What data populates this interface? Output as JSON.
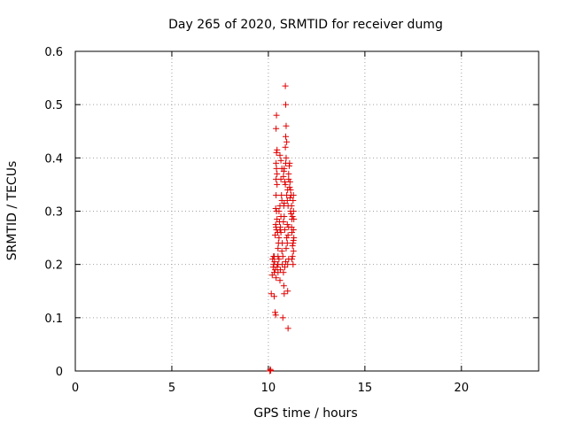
{
  "chart_data": {
    "type": "scatter",
    "title": "Day 265 of 2020, SRMTID for receiver dumg",
    "xlabel": "GPS time / hours",
    "ylabel": "SRMTID / TECUs",
    "xlim": [
      0,
      24
    ],
    "ylim": [
      0,
      0.6
    ],
    "xticks": [
      0,
      5,
      10,
      15,
      20
    ],
    "yticks": [
      0,
      0.1,
      0.2,
      0.3,
      0.4,
      0.5,
      0.6
    ],
    "xtick_labels": [
      "0",
      "5",
      "10",
      "15",
      "20"
    ],
    "ytick_labels": [
      "0",
      "0.1",
      "0.2",
      "0.3",
      "0.4",
      "0.5",
      "0.6"
    ],
    "grid": true,
    "marker": "+",
    "color": "#e00000",
    "series": [
      {
        "name": "SRMTID",
        "points": [
          [
            10.08,
            0.0
          ],
          [
            10.1,
            0.003
          ],
          [
            10.12,
            0.001
          ],
          [
            10.15,
            0.145
          ],
          [
            10.2,
            0.18
          ],
          [
            10.22,
            0.21
          ],
          [
            10.25,
            0.195
          ],
          [
            10.27,
            0.215
          ],
          [
            10.3,
            0.185
          ],
          [
            10.32,
            0.205
          ],
          [
            10.3,
            0.14
          ],
          [
            10.35,
            0.11
          ],
          [
            10.38,
            0.105
          ],
          [
            10.35,
            0.19
          ],
          [
            10.4,
            0.175
          ],
          [
            10.35,
            0.255
          ],
          [
            10.38,
            0.275
          ],
          [
            10.4,
            0.27
          ],
          [
            10.42,
            0.265
          ],
          [
            10.45,
            0.285
          ],
          [
            10.38,
            0.305
          ],
          [
            10.42,
            0.3
          ],
          [
            10.4,
            0.33
          ],
          [
            10.45,
            0.35
          ],
          [
            10.4,
            0.36
          ],
          [
            10.42,
            0.38
          ],
          [
            10.45,
            0.37
          ],
          [
            10.4,
            0.39
          ],
          [
            10.42,
            0.41
          ],
          [
            10.45,
            0.415
          ],
          [
            10.4,
            0.455
          ],
          [
            10.42,
            0.48
          ],
          [
            10.5,
            0.2
          ],
          [
            10.55,
            0.21
          ],
          [
            10.5,
            0.185
          ],
          [
            10.6,
            0.17
          ],
          [
            10.62,
            0.19
          ],
          [
            10.55,
            0.25
          ],
          [
            10.6,
            0.265
          ],
          [
            10.65,
            0.26
          ],
          [
            10.58,
            0.28
          ],
          [
            10.62,
            0.27
          ],
          [
            10.55,
            0.3
          ],
          [
            10.65,
            0.29
          ],
          [
            10.6,
            0.31
          ],
          [
            10.7,
            0.32
          ],
          [
            10.68,
            0.33
          ],
          [
            10.7,
            0.225
          ],
          [
            10.72,
            0.24
          ],
          [
            10.75,
            0.215
          ],
          [
            10.72,
            0.2
          ],
          [
            10.78,
            0.185
          ],
          [
            10.8,
            0.16
          ],
          [
            10.82,
            0.145
          ],
          [
            10.75,
            0.1
          ],
          [
            10.6,
            0.405
          ],
          [
            10.65,
            0.395
          ],
          [
            10.8,
            0.31
          ],
          [
            10.82,
            0.315
          ],
          [
            10.78,
            0.28
          ],
          [
            10.82,
            0.29
          ],
          [
            10.85,
            0.265
          ],
          [
            10.78,
            0.365
          ],
          [
            10.85,
            0.355
          ],
          [
            10.8,
            0.375
          ],
          [
            10.82,
            0.38
          ],
          [
            10.88,
            0.35
          ],
          [
            10.9,
            0.39
          ],
          [
            10.92,
            0.4
          ],
          [
            10.88,
            0.42
          ],
          [
            10.95,
            0.43
          ],
          [
            10.9,
            0.44
          ],
          [
            10.92,
            0.46
          ],
          [
            10.9,
            0.5
          ],
          [
            10.88,
            0.535
          ],
          [
            10.95,
            0.33
          ],
          [
            11.0,
            0.34
          ],
          [
            10.98,
            0.32
          ],
          [
            11.02,
            0.31
          ],
          [
            11.05,
            0.36
          ],
          [
            11.0,
            0.2
          ],
          [
            11.05,
            0.21
          ],
          [
            10.98,
            0.24
          ],
          [
            11.02,
            0.255
          ],
          [
            11.05,
            0.27
          ],
          [
            11.0,
            0.15
          ],
          [
            11.02,
            0.08
          ],
          [
            11.05,
            0.37
          ],
          [
            11.08,
            0.385
          ],
          [
            11.1,
            0.39
          ],
          [
            11.1,
            0.345
          ],
          [
            11.12,
            0.355
          ],
          [
            11.15,
            0.34
          ],
          [
            11.12,
            0.325
          ],
          [
            11.18,
            0.33
          ],
          [
            11.15,
            0.3
          ],
          [
            11.2,
            0.31
          ],
          [
            11.18,
            0.295
          ],
          [
            11.22,
            0.285
          ],
          [
            11.25,
            0.29
          ],
          [
            11.2,
            0.27
          ],
          [
            11.22,
            0.26
          ],
          [
            11.25,
            0.235
          ],
          [
            11.28,
            0.24
          ],
          [
            11.3,
            0.245
          ],
          [
            11.22,
            0.21
          ],
          [
            11.25,
            0.215
          ],
          [
            11.28,
            0.2
          ],
          [
            11.3,
            0.33
          ],
          [
            11.28,
            0.32
          ],
          [
            11.3,
            0.3
          ],
          [
            11.32,
            0.285
          ],
          [
            11.3,
            0.265
          ],
          [
            11.32,
            0.25
          ],
          [
            11.3,
            0.225
          ],
          [
            10.65,
            0.36
          ],
          [
            10.7,
            0.38
          ],
          [
            10.5,
            0.23
          ],
          [
            10.52,
            0.24
          ],
          [
            10.48,
            0.26
          ],
          [
            10.45,
            0.195
          ],
          [
            10.48,
            0.2
          ],
          [
            10.5,
            0.215
          ],
          [
            10.3,
            0.215
          ],
          [
            10.28,
            0.2
          ],
          [
            10.85,
            0.195
          ],
          [
            10.9,
            0.205
          ],
          [
            10.92,
            0.23
          ],
          [
            10.95,
            0.25
          ],
          [
            10.98,
            0.275
          ]
        ]
      }
    ]
  }
}
